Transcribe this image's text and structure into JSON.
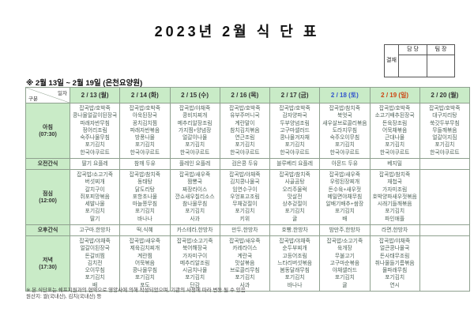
{
  "title": "2023년 2월 식 단 표",
  "subtitle": "※ 2월 13일 ~ 2월 19일 (은천요양원)",
  "approval": {
    "stamp_label": "결재",
    "columns": [
      "담 당",
      "팀 장"
    ]
  },
  "corner": {
    "top": "일자",
    "bottom": "구분"
  },
  "colors": {
    "header_bg": "#c9ebc7",
    "saturday_text": "#3355cc",
    "sunday_text": "#cc4411",
    "menu_text": "#50635a",
    "border": "#8fa18f"
  },
  "days": [
    {
      "label": "2 / 13 (월)",
      "type": "weekday"
    },
    {
      "label": "2 / 14 (화)",
      "type": "weekday"
    },
    {
      "label": "2 / 15 (수)",
      "type": "weekday"
    },
    {
      "label": "2 / 16 (목)",
      "type": "weekday"
    },
    {
      "label": "2 / 17 (금)",
      "type": "weekday"
    },
    {
      "label": "2 / 18 (토)",
      "type": "saturday"
    },
    {
      "label": "2 / 19 (일)",
      "type": "sunday"
    },
    {
      "label": "2 / 20 (월)",
      "type": "weekday"
    }
  ],
  "rows": [
    {
      "label": "아침",
      "time": "(07:30)",
      "tall": true,
      "cells": [
        [
          "잡곡밥/호박죽",
          "콩나물얼갈이된장국",
          "파래자반무침",
          "정어리조림",
          "숙주나물무침",
          "포기김치",
          "한국야쿠르트"
        ],
        [
          "잡곡밥/호박죽",
          "아욱된장국",
          "꽁치김치찜",
          "파래자반볶음",
          "방풍나물",
          "포기김치",
          "한국야쿠르트"
        ],
        [
          "잡곡밥/야채죽",
          "콩비지찌개",
          "메추리알장조림",
          "가지찜+양념장",
          "얼갈이나물",
          "포기김치",
          "한국야쿠르트"
        ],
        [
          "잡곡밥/호박죽",
          "유부주머니국",
          "계란말이",
          "참치김치볶음",
          "연근조림",
          "포기김치",
          "한국야쿠르트"
        ],
        [
          "잡곡밥/호박죽",
          "감자양파국",
          "두부양념조림",
          "고구마샐러드",
          "콩나물겨자채",
          "포기김치",
          "한국야쿠르트"
        ],
        [
          "잡곡밥/참치죽",
          "북엇국",
          "새우살브로콜리볶음",
          "도라지무침",
          "숙주오이무침",
          "포기김치",
          "한국야쿠르트"
        ],
        [
          "잡곡밥/호박죽",
          "소고기배추된장국",
          "돈육장조림",
          "어묵채볶음",
          "근대나물",
          "포기김치",
          "한국야쿠르트"
        ],
        [
          "잡곡밥/호박죽",
          "대구지리탕",
          "쑥갓두부무침",
          "무들깨볶음",
          "얼갈이지짐",
          "포기김치",
          "한국야쿠르트"
        ]
      ]
    },
    {
      "label": "오전간식",
      "time": "",
      "tall": false,
      "cells": [
        [
          "딸기 요플레"
        ],
        [
          "참깨 두유"
        ],
        [
          "플레인 요플레"
        ],
        [
          "검은콩 두유"
        ],
        [
          "블루베리 요플레"
        ],
        [
          "아몬드 두유"
        ],
        [
          "베지밀"
        ],
        []
      ]
    },
    {
      "label": "점심",
      "time": "(12:00)",
      "tall": true,
      "cells": [
        [
          "잡곡밥/소고기죽",
          "버섯찌개",
          "갈치구이",
          "쥐포피망볶음",
          "세발나물",
          "포기김치",
          "딸기"
        ],
        [
          "잡곡밥/참치죽",
          "동태탕",
          "닭도리탕",
          "포항초나물",
          "마늘쫑무침",
          "포기김치",
          "바나나"
        ],
        [
          "잡곡밥/새우죽",
          "짬뽕국",
          "짜장라이스",
          "깐쇼새우칠리소스",
          "참나물무침",
          "포기김치",
          "사과"
        ],
        [
          "잡곡밥/야채죽",
          "김치콩나물국",
          "임연수구이",
          "우엉표고조림",
          "무채겉절이",
          "포기김치",
          "키위"
        ],
        [
          "잡곡밥/참치죽",
          "사골곰탕",
          "오리주물럭",
          "맛살전",
          "상추겉절이",
          "포기김치",
          "귤"
        ],
        [
          "잡곡밥/새우죽",
          "우렁된장찌개",
          "돈수육+새우젓",
          "메밀면야채무침",
          "알배기배추+쌈장",
          "포기김치",
          "배"
        ],
        [
          "잡곡밥/참치죽",
          "재첩국",
          "가자미조림",
          "호박양파새우젓볶음",
          "시래기들깨볶음",
          "포기김치",
          "파인애플"
        ],
        []
      ]
    },
    {
      "label": "오후간식",
      "time": "",
      "tall": false,
      "cells": [
        [
          "고구마,한방차"
        ],
        [
          "떡,식혜"
        ],
        [
          "카스테라,한방차"
        ],
        [
          "만두,한방차"
        ],
        [
          "호빵,한방차"
        ],
        [
          "밤만주,한방차"
        ],
        [
          "라면,한방차"
        ],
        []
      ]
    },
    {
      "label": "저녁",
      "time": "(17:30)",
      "tall": true,
      "cells": [
        [
          "잡곡밥/야채죽",
          "얼갈이된장국",
          "돈갈비찜",
          "김치전",
          "오이무침",
          "포기김치",
          "배"
        ],
        [
          "잡곡밥/새우죽",
          "제육김치찌개",
          "계란찜",
          "어묵볶음",
          "콩나물무침",
          "포기김치",
          "포도"
        ],
        [
          "잡곡밥/소고기죽",
          "북어해장국",
          "가자미구이",
          "메추리알조림",
          "시금치나물",
          "포기김치",
          "단감"
        ],
        [
          "잡곡밥/새우죽",
          "카레라이스",
          "계란국",
          "맛살볶음",
          "브로콜리무침",
          "포기김치",
          "사과"
        ],
        [
          "잡곡밥/야채죽",
          "순두부찌개",
          "고등어조림",
          "느타리버섯볶음",
          "봄동달래무침",
          "포기김치",
          "바나나"
        ],
        [
          "잡곡밥/소고기죽",
          "육개장",
          "무불고기",
          "고구마순볶음",
          "야채샐러드",
          "포기김치",
          "귤"
        ],
        [
          "잡곡밥/야채죽",
          "얼큰콩나물국",
          "돈사태무조림",
          "취나물들기름볶음",
          "물파래무침",
          "포기김치",
          "연시"
        ],
        []
      ]
    }
  ],
  "footnotes": [
    "※ 본 식단표는 쉐프지원과의 협약으로 영양사에 의해 작성되었으며, 기관의 사정에 따라 변동 될 수 있음",
    "원산지: 쌀(국내산), 김치(국내산) 등"
  ]
}
